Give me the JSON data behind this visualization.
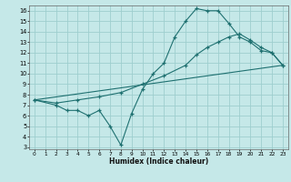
{
  "xlabel": "Humidex (Indice chaleur)",
  "xlim": [
    -0.5,
    23.5
  ],
  "ylim": [
    2.8,
    16.5
  ],
  "xticks": [
    0,
    1,
    2,
    3,
    4,
    5,
    6,
    7,
    8,
    9,
    10,
    11,
    12,
    13,
    14,
    15,
    16,
    17,
    18,
    19,
    20,
    21,
    22,
    23
  ],
  "yticks": [
    3,
    4,
    5,
    6,
    7,
    8,
    9,
    10,
    11,
    12,
    13,
    14,
    15,
    16
  ],
  "background_color": "#c5e8e8",
  "grid_color": "#9ecece",
  "line_color": "#1e7070",
  "line1_x": [
    0,
    2,
    3,
    4,
    5,
    6,
    7,
    8,
    9,
    10,
    11,
    12,
    13,
    14,
    15,
    16,
    17,
    18,
    19,
    20,
    21,
    22,
    23
  ],
  "line1_y": [
    7.5,
    7.0,
    6.5,
    6.5,
    6.0,
    6.5,
    5.0,
    3.2,
    6.2,
    8.5,
    10.0,
    11.0,
    13.5,
    15.0,
    16.2,
    16.0,
    16.0,
    14.8,
    13.5,
    13.0,
    12.2,
    12.0,
    10.8
  ],
  "line2_x": [
    0,
    2,
    4,
    6,
    8,
    10,
    12,
    14,
    15,
    16,
    17,
    18,
    19,
    20,
    21,
    22,
    23
  ],
  "line2_y": [
    7.5,
    7.2,
    7.5,
    7.8,
    8.2,
    9.0,
    9.8,
    10.8,
    11.8,
    12.5,
    13.0,
    13.5,
    13.8,
    13.2,
    12.5,
    12.0,
    10.8
  ],
  "line3_x": [
    0,
    23
  ],
  "line3_y": [
    7.5,
    10.8
  ]
}
